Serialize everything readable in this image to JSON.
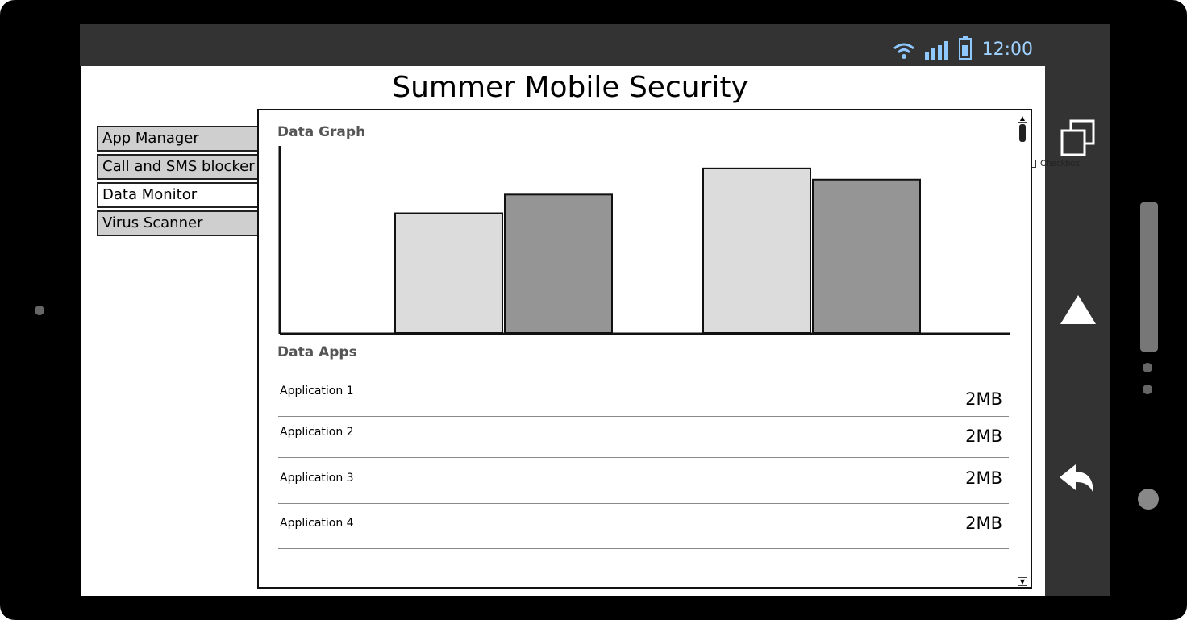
{
  "status_bar": {
    "time": "12:00",
    "icons": [
      "wifi-icon",
      "signal-icon",
      "battery-icon"
    ]
  },
  "title": "Summer Mobile Security",
  "menu": [
    {
      "label": "App Manager",
      "active": false
    },
    {
      "label": "Call and SMS blocker",
      "active": false
    },
    {
      "label": "Data Monitor",
      "active": true
    },
    {
      "label": "Virus Scanner",
      "active": false
    }
  ],
  "data_graph": {
    "title": "Data Graph"
  },
  "chart_data": {
    "type": "bar",
    "title": "Data Graph",
    "categories": [
      "",
      ""
    ],
    "series": [
      {
        "color": "#dcdcdc",
        "values": [
          64,
          88
        ]
      },
      {
        "color": "#959595",
        "values": [
          74,
          82
        ]
      }
    ],
    "ylim": [
      0,
      100
    ],
    "grid": false,
    "legend": "none"
  },
  "data_apps": {
    "title": "Data Apps",
    "apps": [
      {
        "name": "Application 1",
        "size": "2MB"
      },
      {
        "name": "Application 2",
        "size": "2MB"
      },
      {
        "name": "Application 3",
        "size": "2MB"
      },
      {
        "name": "Application 4",
        "size": "2MB"
      }
    ]
  },
  "checkbox": {
    "label": "Checkbox",
    "checked": false
  },
  "nav_buttons": [
    "recent-apps-icon",
    "home-icon",
    "back-icon"
  ]
}
